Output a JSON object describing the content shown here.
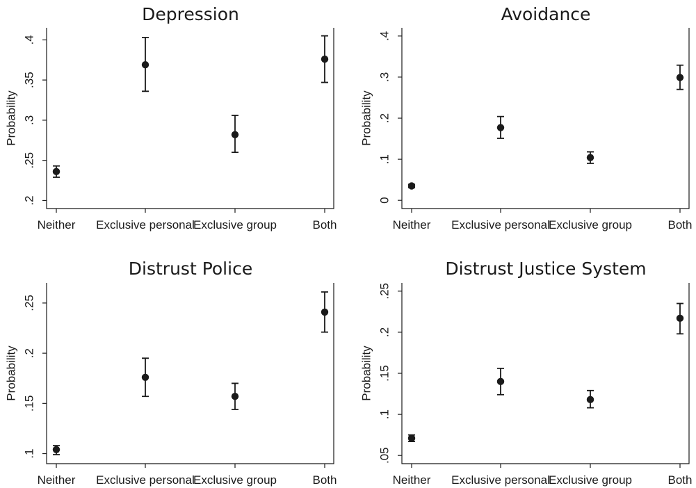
{
  "chart_data": [
    {
      "type": "scatter",
      "title": "Depression",
      "ylabel": "Probability",
      "categories": [
        "Neither",
        "Exclusive personal",
        "Exclusive group",
        "Both"
      ],
      "values": [
        0.236,
        0.369,
        0.282,
        0.376
      ],
      "ci_lower": [
        0.229,
        0.336,
        0.26,
        0.347
      ],
      "ci_upper": [
        0.243,
        0.403,
        0.306,
        0.405
      ],
      "ylim": [
        0.19,
        0.415
      ],
      "yticks": [
        0.2,
        0.25,
        0.3,
        0.35,
        0.4
      ],
      "ytick_labels": [
        ".2",
        ".25",
        ".3",
        ".35",
        ".4"
      ],
      "grid": false,
      "legend": "none"
    },
    {
      "type": "scatter",
      "title": "Avoidance",
      "ylabel": "Probability",
      "categories": [
        "Neither",
        "Exclusive personal",
        "Exclusive group",
        "Both"
      ],
      "values": [
        0.035,
        0.177,
        0.104,
        0.299
      ],
      "ci_lower": [
        0.031,
        0.151,
        0.09,
        0.27
      ],
      "ci_upper": [
        0.039,
        0.204,
        0.118,
        0.329
      ],
      "ylim": [
        -0.02,
        0.42
      ],
      "yticks": [
        0,
        0.1,
        0.2,
        0.3,
        0.4
      ],
      "ytick_labels": [
        "0",
        ".1",
        ".2",
        ".3",
        ".4"
      ],
      "grid": false,
      "legend": "none"
    },
    {
      "type": "scatter",
      "title": "Distrust Police",
      "ylabel": "Probability",
      "categories": [
        "Neither",
        "Exclusive personal",
        "Exclusive group",
        "Both"
      ],
      "values": [
        0.104,
        0.176,
        0.157,
        0.241
      ],
      "ci_lower": [
        0.099,
        0.157,
        0.144,
        0.221
      ],
      "ci_upper": [
        0.108,
        0.195,
        0.17,
        0.261
      ],
      "ylim": [
        0.09,
        0.27
      ],
      "yticks": [
        0.1,
        0.15,
        0.2,
        0.25
      ],
      "ytick_labels": [
        ".1",
        ".15",
        ".2",
        ".25"
      ],
      "grid": false,
      "legend": "none"
    },
    {
      "type": "scatter",
      "title": "Distrust Justice System",
      "ylabel": "Probability",
      "categories": [
        "Neither",
        "Exclusive personal",
        "Exclusive group",
        "Both"
      ],
      "values": [
        0.071,
        0.14,
        0.118,
        0.217
      ],
      "ci_lower": [
        0.067,
        0.124,
        0.108,
        0.198
      ],
      "ci_upper": [
        0.075,
        0.156,
        0.129,
        0.235
      ],
      "ylim": [
        0.04,
        0.26
      ],
      "yticks": [
        0.05,
        0.1,
        0.15,
        0.2,
        0.25
      ],
      "ytick_labels": [
        ".05",
        ".1",
        ".15",
        ".2",
        ".25"
      ],
      "grid": false,
      "legend": "none"
    }
  ]
}
